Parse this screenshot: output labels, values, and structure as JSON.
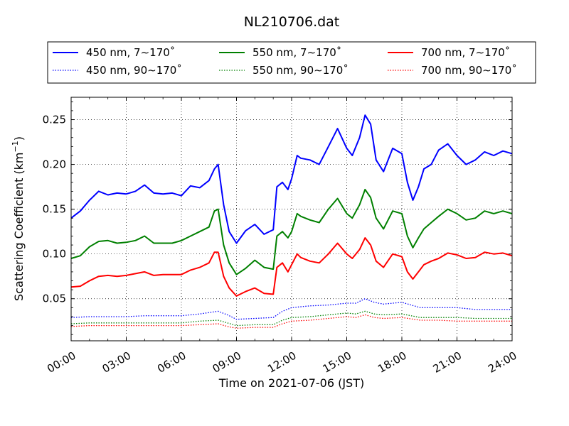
{
  "chart_data": {
    "type": "line",
    "title": "NL210706.dat",
    "xlabel": "Time on 2021-07-06 (JST)",
    "ylabel_main": "Scattering Coefficient (km",
    "ylabel_exp": "−1",
    "ylabel_close": ")",
    "xlim": [
      0,
      24
    ],
    "ylim": [
      0.003,
      0.275
    ],
    "x_ticks": [
      0,
      3,
      6,
      9,
      12,
      15,
      18,
      21,
      24
    ],
    "x_tick_labels": [
      "00:00",
      "03:00",
      "06:00",
      "09:00",
      "12:00",
      "15:00",
      "18:00",
      "21:00",
      "24:00"
    ],
    "y_ticks": [
      0.05,
      0.1,
      0.15,
      0.2,
      0.25
    ],
    "y_tick_labels": [
      "0.05",
      "0.10",
      "0.15",
      "0.20",
      "0.25"
    ],
    "grid": true,
    "legend_placement": "top, above plot, 3 columns",
    "series": [
      {
        "name": "450 nm, 7∼170˚",
        "color": "#0000ff",
        "style": "solid",
        "x": [
          0,
          0.5,
          1,
          1.5,
          2,
          2.5,
          3,
          3.5,
          4,
          4.5,
          5,
          5.5,
          6,
          6.5,
          7,
          7.5,
          7.8,
          8,
          8.3,
          8.6,
          9,
          9.5,
          10,
          10.5,
          11,
          11.2,
          11.5,
          11.8,
          12,
          12.3,
          12.5,
          13,
          13.5,
          14,
          14.5,
          15,
          15.3,
          15.7,
          16,
          16.3,
          16.6,
          17,
          17.5,
          18,
          18.3,
          18.6,
          18.9,
          19.2,
          19.6,
          20,
          20.5,
          21,
          21.5,
          22,
          22.5,
          23,
          23.5,
          24
        ],
        "y": [
          0.14,
          0.148,
          0.16,
          0.17,
          0.166,
          0.168,
          0.167,
          0.17,
          0.177,
          0.168,
          0.167,
          0.168,
          0.165,
          0.176,
          0.174,
          0.182,
          0.195,
          0.2,
          0.155,
          0.125,
          0.112,
          0.126,
          0.133,
          0.122,
          0.127,
          0.175,
          0.18,
          0.172,
          0.184,
          0.21,
          0.207,
          0.205,
          0.2,
          0.22,
          0.24,
          0.218,
          0.21,
          0.23,
          0.255,
          0.245,
          0.205,
          0.192,
          0.218,
          0.212,
          0.18,
          0.16,
          0.175,
          0.195,
          0.2,
          0.216,
          0.223,
          0.21,
          0.2,
          0.205,
          0.214,
          0.21,
          0.215,
          0.212
        ]
      },
      {
        "name": "550 nm, 7∼170˚",
        "color": "#008000",
        "style": "solid",
        "x": [
          0,
          0.5,
          1,
          1.5,
          2,
          2.5,
          3,
          3.5,
          4,
          4.5,
          5,
          5.5,
          6,
          6.5,
          7,
          7.5,
          7.8,
          8,
          8.3,
          8.6,
          9,
          9.5,
          10,
          10.5,
          11,
          11.2,
          11.5,
          11.8,
          12,
          12.3,
          12.5,
          13,
          13.5,
          14,
          14.5,
          15,
          15.3,
          15.7,
          16,
          16.3,
          16.6,
          17,
          17.5,
          18,
          18.3,
          18.6,
          18.9,
          19.2,
          19.6,
          20,
          20.5,
          21,
          21.5,
          22,
          22.5,
          23,
          23.5,
          24
        ],
        "y": [
          0.095,
          0.098,
          0.108,
          0.114,
          0.115,
          0.112,
          0.113,
          0.115,
          0.12,
          0.112,
          0.112,
          0.112,
          0.115,
          0.12,
          0.125,
          0.13,
          0.148,
          0.15,
          0.11,
          0.09,
          0.077,
          0.084,
          0.093,
          0.085,
          0.083,
          0.12,
          0.125,
          0.118,
          0.125,
          0.145,
          0.142,
          0.138,
          0.135,
          0.15,
          0.162,
          0.145,
          0.14,
          0.155,
          0.172,
          0.163,
          0.14,
          0.128,
          0.148,
          0.145,
          0.12,
          0.107,
          0.118,
          0.128,
          0.135,
          0.142,
          0.15,
          0.145,
          0.138,
          0.14,
          0.148,
          0.145,
          0.148,
          0.145
        ]
      },
      {
        "name": "700 nm, 7∼170˚",
        "color": "#ff0000",
        "style": "solid",
        "x": [
          0,
          0.5,
          1,
          1.5,
          2,
          2.5,
          3,
          3.5,
          4,
          4.5,
          5,
          5.5,
          6,
          6.5,
          7,
          7.5,
          7.8,
          8,
          8.3,
          8.6,
          9,
          9.5,
          10,
          10.5,
          11,
          11.2,
          11.5,
          11.8,
          12,
          12.3,
          12.5,
          13,
          13.5,
          14,
          14.5,
          15,
          15.3,
          15.7,
          16,
          16.3,
          16.6,
          17,
          17.5,
          18,
          18.3,
          18.6,
          18.9,
          19.2,
          19.6,
          20,
          20.5,
          21,
          21.5,
          22,
          22.5,
          23,
          23.5,
          24
        ],
        "y": [
          0.063,
          0.064,
          0.07,
          0.075,
          0.076,
          0.075,
          0.076,
          0.078,
          0.08,
          0.076,
          0.077,
          0.077,
          0.077,
          0.082,
          0.085,
          0.09,
          0.102,
          0.102,
          0.075,
          0.062,
          0.053,
          0.058,
          0.062,
          0.056,
          0.055,
          0.085,
          0.09,
          0.08,
          0.088,
          0.1,
          0.096,
          0.092,
          0.09,
          0.1,
          0.112,
          0.1,
          0.095,
          0.105,
          0.118,
          0.11,
          0.092,
          0.085,
          0.1,
          0.097,
          0.08,
          0.072,
          0.08,
          0.088,
          0.092,
          0.095,
          0.101,
          0.099,
          0.095,
          0.096,
          0.102,
          0.1,
          0.101,
          0.098
        ]
      },
      {
        "name": "450 nm, 90∼170˚",
        "color": "#0000ff",
        "style": "dotted",
        "x": [
          0,
          1,
          2,
          3,
          4,
          5,
          6,
          7,
          8,
          8.5,
          9,
          10,
          11,
          11.5,
          12,
          13,
          14,
          15,
          15.5,
          16,
          16.5,
          17,
          18,
          19,
          20,
          21,
          22,
          23,
          24
        ],
        "y": [
          0.029,
          0.03,
          0.03,
          0.03,
          0.031,
          0.031,
          0.031,
          0.033,
          0.036,
          0.032,
          0.027,
          0.028,
          0.029,
          0.036,
          0.04,
          0.042,
          0.043,
          0.045,
          0.045,
          0.05,
          0.046,
          0.044,
          0.046,
          0.04,
          0.04,
          0.04,
          0.038,
          0.038,
          0.038
        ]
      },
      {
        "name": "550 nm, 90∼170˚",
        "color": "#008000",
        "style": "dotted",
        "x": [
          0,
          1,
          2,
          3,
          4,
          5,
          6,
          7,
          8,
          8.5,
          9,
          10,
          11,
          11.5,
          12,
          13,
          14,
          15,
          15.5,
          16,
          16.5,
          17,
          18,
          19,
          20,
          21,
          22,
          23,
          24
        ],
        "y": [
          0.022,
          0.023,
          0.023,
          0.023,
          0.023,
          0.023,
          0.023,
          0.025,
          0.026,
          0.023,
          0.02,
          0.021,
          0.021,
          0.026,
          0.029,
          0.03,
          0.032,
          0.034,
          0.033,
          0.036,
          0.033,
          0.032,
          0.033,
          0.029,
          0.029,
          0.029,
          0.028,
          0.028,
          0.028
        ]
      },
      {
        "name": "700 nm, 90∼170˚",
        "color": "#ff0000",
        "style": "dotted",
        "x": [
          0,
          1,
          2,
          3,
          4,
          5,
          6,
          7,
          8,
          8.5,
          9,
          10,
          11,
          11.5,
          12,
          13,
          14,
          15,
          15.5,
          16,
          16.5,
          17,
          18,
          19,
          20,
          21,
          22,
          23,
          24
        ],
        "y": [
          0.019,
          0.02,
          0.02,
          0.02,
          0.02,
          0.02,
          0.02,
          0.021,
          0.022,
          0.019,
          0.017,
          0.018,
          0.018,
          0.022,
          0.025,
          0.026,
          0.028,
          0.03,
          0.029,
          0.032,
          0.029,
          0.028,
          0.029,
          0.026,
          0.026,
          0.025,
          0.025,
          0.025,
          0.025
        ]
      }
    ]
  }
}
